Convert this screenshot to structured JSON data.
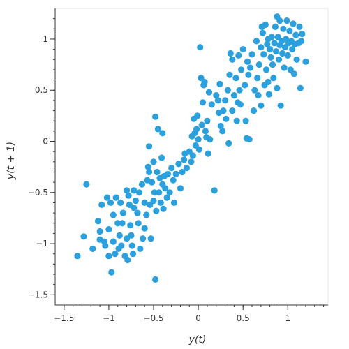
{
  "chart_data": {
    "type": "scatter",
    "xlabel": "y(t)",
    "ylabel": "y(t + 1)",
    "xlim": [
      -1.6,
      1.45
    ],
    "ylim": [
      -1.6,
      1.3
    ],
    "x_ticks": [
      -1.5,
      -1,
      -0.5,
      0,
      0.5,
      1
    ],
    "x_tick_labels": [
      "−1.5",
      "−1",
      "−0.5",
      "0",
      "0.5",
      "1"
    ],
    "y_ticks": [
      -1.5,
      -1,
      -0.5,
      0,
      0.5,
      1
    ],
    "y_tick_labels": [
      "−1.5",
      "−1",
      "−0.5",
      "0",
      "0.5",
      "1"
    ],
    "grid": false,
    "point_color": "#2ba0dc",
    "points": [
      [
        -1.35,
        -1.12
      ],
      [
        -1.28,
        -0.93
      ],
      [
        -1.25,
        -0.42
      ],
      [
        -1.18,
        -1.05
      ],
      [
        -1.12,
        -0.78
      ],
      [
        -1.1,
        -0.88
      ],
      [
        -1.1,
        -0.96
      ],
      [
        -1.08,
        -0.62
      ],
      [
        -1.05,
        -0.98
      ],
      [
        -1.04,
        -1.02
      ],
      [
        -1.02,
        -0.55
      ],
      [
        -1.0,
        -0.86
      ],
      [
        -1.0,
        -1.12
      ],
      [
        -0.98,
        -0.6
      ],
      [
        -0.97,
        -1.28
      ],
      [
        -0.95,
        -0.72
      ],
      [
        -0.95,
        -0.98
      ],
      [
        -0.93,
        -1.1
      ],
      [
        -0.92,
        -0.55
      ],
      [
        -0.9,
        -0.8
      ],
      [
        -0.89,
        -1.05
      ],
      [
        -0.88,
        -0.92
      ],
      [
        -0.87,
        -0.6
      ],
      [
        -0.86,
        -1.02
      ],
      [
        -0.85,
        -0.8
      ],
      [
        -0.84,
        -0.7
      ],
      [
        -0.82,
        -1.12
      ],
      [
        -0.8,
        -0.95
      ],
      [
        -0.8,
        -0.48
      ],
      [
        -0.79,
        -1.16
      ],
      [
        -0.78,
        -0.53
      ],
      [
        -0.77,
        -0.62
      ],
      [
        -0.76,
        -0.82
      ],
      [
        -0.75,
        -0.92
      ],
      [
        -0.74,
        -1.02
      ],
      [
        -0.73,
        -1.1
      ],
      [
        -0.72,
        -0.65
      ],
      [
        -0.72,
        -0.48
      ],
      [
        -0.7,
        -0.58
      ],
      [
        -0.68,
        -0.7
      ],
      [
        -0.67,
        -0.8
      ],
      [
        -0.66,
        -0.5
      ],
      [
        -0.65,
        -1.05
      ],
      [
        -0.63,
        -0.42
      ],
      [
        -0.62,
        -0.95
      ],
      [
        -0.6,
        -0.85
      ],
      [
        -0.6,
        -0.6
      ],
      [
        -0.58,
        -0.72
      ],
      [
        -0.57,
        -0.38
      ],
      [
        -0.56,
        -0.25
      ],
      [
        -0.55,
        -0.3
      ],
      [
        -0.55,
        -0.05
      ],
      [
        -0.54,
        -0.62
      ],
      [
        -0.53,
        -0.95
      ],
      [
        -0.52,
        -0.4
      ],
      [
        -0.5,
        -0.2
      ],
      [
        -0.5,
        -0.58
      ],
      [
        -0.49,
        -0.5
      ],
      [
        -0.48,
        0.24
      ],
      [
        -0.48,
        -1.35
      ],
      [
        -0.47,
        -0.68
      ],
      [
        -0.46,
        -0.3
      ],
      [
        -0.45,
        0.12
      ],
      [
        -0.44,
        -0.5
      ],
      [
        -0.43,
        -0.36
      ],
      [
        -0.42,
        -0.6
      ],
      [
        -0.41,
        -0.16
      ],
      [
        -0.4,
        -0.42
      ],
      [
        -0.4,
        0.08
      ],
      [
        -0.39,
        -0.66
      ],
      [
        -0.38,
        -0.34
      ],
      [
        -0.37,
        -0.46
      ],
      [
        -0.35,
        -0.55
      ],
      [
        -0.34,
        -0.32
      ],
      [
        -0.32,
        -0.5
      ],
      [
        -0.3,
        -0.26
      ],
      [
        -0.28,
        -0.38
      ],
      [
        -0.27,
        -0.6
      ],
      [
        -0.25,
        -0.32
      ],
      [
        -0.22,
        -0.22
      ],
      [
        -0.2,
        -0.46
      ],
      [
        -0.18,
        -0.3
      ],
      [
        -0.16,
        -0.18
      ],
      [
        -0.15,
        -0.12
      ],
      [
        -0.13,
        -0.26
      ],
      [
        -0.1,
        -0.1
      ],
      [
        -0.08,
        -0.2
      ],
      [
        -0.07,
        0.05
      ],
      [
        -0.06,
        -0.14
      ],
      [
        -0.05,
        0.22
      ],
      [
        -0.04,
        0.08
      ],
      [
        -0.03,
        -0.04
      ],
      [
        -0.02,
        0.12
      ],
      [
        -0.01,
        0.25
      ],
      [
        0.0,
        0.02
      ],
      [
        0.01,
        -0.08
      ],
      [
        0.02,
        0.92
      ],
      [
        0.03,
        0.62
      ],
      [
        0.04,
        0.16
      ],
      [
        0.05,
        0.38
      ],
      [
        0.06,
        0.55
      ],
      [
        0.07,
        0.58
      ],
      [
        0.08,
        0.1
      ],
      [
        0.09,
        0.04
      ],
      [
        0.1,
        0.2
      ],
      [
        0.11,
        -0.12
      ],
      [
        0.12,
        0.48
      ],
      [
        0.13,
        0.02
      ],
      [
        0.15,
        0.36
      ],
      [
        0.18,
        -0.48
      ],
      [
        0.2,
        0.45
      ],
      [
        0.22,
        0.4
      ],
      [
        0.23,
        0.28
      ],
      [
        0.24,
        0.56
      ],
      [
        0.25,
        0.15
      ],
      [
        0.27,
        0.1
      ],
      [
        0.28,
        0.3
      ],
      [
        0.3,
        0.4
      ],
      [
        0.31,
        0.22
      ],
      [
        0.33,
        0.5
      ],
      [
        0.34,
        -0.02
      ],
      [
        0.35,
        0.65
      ],
      [
        0.36,
        0.86
      ],
      [
        0.38,
        0.8
      ],
      [
        0.38,
        0.3
      ],
      [
        0.4,
        0.45
      ],
      [
        0.42,
        0.62
      ],
      [
        0.43,
        0.2
      ],
      [
        0.44,
        0.38
      ],
      [
        0.45,
        0.84
      ],
      [
        0.46,
        0.5
      ],
      [
        0.47,
        0.36
      ],
      [
        0.48,
        0.7
      ],
      [
        0.5,
        0.9
      ],
      [
        0.52,
        0.55
      ],
      [
        0.53,
        0.2
      ],
      [
        0.54,
        0.03
      ],
      [
        0.55,
        0.78
      ],
      [
        0.56,
        0.65
      ],
      [
        0.57,
        0.02
      ],
      [
        0.58,
        0.72
      ],
      [
        0.6,
        0.85
      ],
      [
        0.62,
        0.3
      ],
      [
        0.63,
        0.5
      ],
      [
        0.65,
        0.98
      ],
      [
        0.66,
        0.62
      ],
      [
        0.67,
        0.45
      ],
      [
        0.68,
        0.75
      ],
      [
        0.7,
        0.92
      ],
      [
        0.7,
        0.35
      ],
      [
        0.71,
        1.12
      ],
      [
        0.72,
        1.06
      ],
      [
        0.73,
        0.85
      ],
      [
        0.74,
        0.55
      ],
      [
        0.75,
        1.14
      ],
      [
        0.76,
        0.7
      ],
      [
        0.77,
        0.95
      ],
      [
        0.78,
        1.0
      ],
      [
        0.78,
        0.58
      ],
      [
        0.79,
        0.46
      ],
      [
        0.8,
        0.9
      ],
      [
        0.81,
        0.82
      ],
      [
        0.82,
        1.02
      ],
      [
        0.83,
        0.75
      ],
      [
        0.84,
        0.62
      ],
      [
        0.85,
        0.96
      ],
      [
        0.86,
        1.12
      ],
      [
        0.87,
        0.88
      ],
      [
        0.88,
        1.22
      ],
      [
        0.88,
        0.52
      ],
      [
        0.89,
        1.02
      ],
      [
        0.9,
        0.8
      ],
      [
        0.91,
        0.94
      ],
      [
        0.91,
        1.18
      ],
      [
        0.92,
        0.35
      ],
      [
        0.93,
        0.98
      ],
      [
        0.94,
        0.86
      ],
      [
        0.95,
        1.1
      ],
      [
        0.96,
        0.72
      ],
      [
        0.97,
        0.92
      ],
      [
        0.98,
        1.0
      ],
      [
        0.99,
        1.18
      ],
      [
        1.0,
        0.84
      ],
      [
        1.01,
        0.96
      ],
      [
        1.02,
        1.08
      ],
      [
        1.03,
        0.7
      ],
      [
        1.04,
        0.98
      ],
      [
        1.05,
        0.9
      ],
      [
        1.06,
        1.15
      ],
      [
        1.07,
        0.66
      ],
      [
        1.08,
        0.95
      ],
      [
        1.09,
        1.04
      ],
      [
        1.1,
        0.8
      ],
      [
        1.12,
        0.96
      ],
      [
        1.13,
        1.12
      ],
      [
        1.14,
        0.52
      ],
      [
        1.15,
        0.98
      ],
      [
        1.16,
        1.05
      ],
      [
        1.2,
        0.78
      ]
    ]
  }
}
